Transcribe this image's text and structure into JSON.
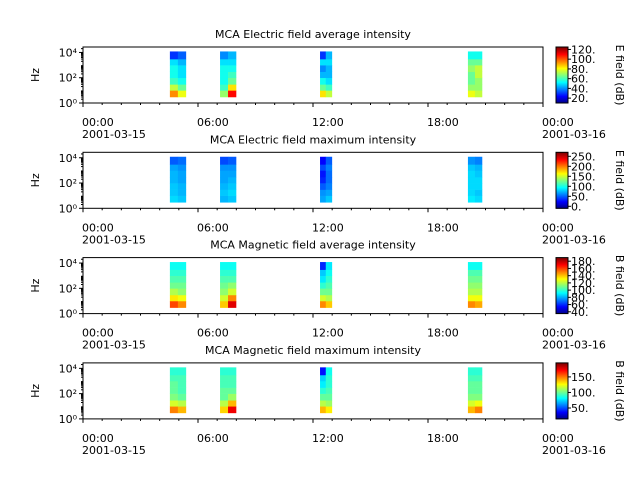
{
  "chart_data": [
    {
      "type": "spectrogram",
      "title": "MCA  Electric field average intensity",
      "ylabel": "Hz",
      "log_y": true,
      "colormap": "jet",
      "xlim": [
        "2001-03-15T00:00",
        "2001-03-16T00:00"
      ],
      "xticks": [
        {
          "value": "2001-03-15T00:00",
          "label": "00:00\n2001-03-15"
        },
        {
          "value": "2001-03-15T06:00",
          "label": "06:00"
        },
        {
          "value": "2001-03-15T12:00",
          "label": "12:00"
        },
        {
          "value": "2001-03-15T18:00",
          "label": "18:00"
        },
        {
          "value": "2001-03-16T00:00",
          "label": "00:00\n2001-03-16"
        }
      ],
      "ylim": [
        1,
        27000
      ],
      "yticks": [
        {
          "value": 1,
          "label": "10⁰"
        },
        {
          "value": 100,
          "label": "10²"
        },
        {
          "value": 10000,
          "label": "10⁴"
        }
      ],
      "x_start": [
        "2001-03-15T04:32",
        "2001-03-15T04:57",
        "2001-03-15T07:09",
        "2001-03-15T07:34",
        "2001-03-15T12:22",
        "2001-03-15T12:40",
        "2001-03-15T20:05",
        "2001-03-15T20:27"
      ],
      "x_end": [
        "2001-03-15T04:57",
        "2001-03-15T05:22",
        "2001-03-15T07:34",
        "2001-03-15T07:59",
        "2001-03-15T12:40",
        "2001-03-15T12:59",
        "2001-03-15T20:27",
        "2001-03-15T20:49"
      ],
      "y_bins": [
        3,
        10,
        30,
        100,
        300,
        1000,
        3000,
        12000
      ],
      "values": [
        [
          95,
          75,
          60,
          55,
          55,
          50,
          30
        ],
        [
          80,
          65,
          55,
          50,
          50,
          45,
          35
        ],
        [
          70,
          60,
          55,
          55,
          55,
          50,
          40
        ],
        [
          110,
          85,
          65,
          60,
          55,
          50,
          45
        ],
        [
          85,
          65,
          55,
          45,
          40,
          50,
          30
        ],
        [
          75,
          60,
          50,
          45,
          45,
          50,
          45
        ],
        [
          80,
          70,
          65,
          65,
          70,
          65,
          55
        ],
        [
          75,
          70,
          70,
          75,
          75,
          65,
          55
        ]
      ],
      "colorbar": {
        "label": "E field (dB)",
        "lim": [
          10,
          125
        ],
        "ticks": [
          {
            "value": 20,
            "label": "20."
          },
          {
            "value": 40,
            "label": "40."
          },
          {
            "value": 60,
            "label": "60."
          },
          {
            "value": 80,
            "label": "80."
          },
          {
            "value": 100,
            "label": "100."
          },
          {
            "value": 120,
            "label": "120."
          }
        ]
      }
    },
    {
      "type": "spectrogram",
      "title": "MCA  Electric field maximum intensity",
      "ylabel": "Hz",
      "log_y": true,
      "colormap": "jet",
      "xlim": [
        "2001-03-15T00:00",
        "2001-03-16T00:00"
      ],
      "xticks": [
        {
          "value": "2001-03-15T00:00",
          "label": "00:00\n2001-03-15"
        },
        {
          "value": "2001-03-15T06:00",
          "label": "06:00"
        },
        {
          "value": "2001-03-15T12:00",
          "label": "12:00"
        },
        {
          "value": "2001-03-15T18:00",
          "label": "18:00"
        },
        {
          "value": "2001-03-16T00:00",
          "label": "00:00\n2001-03-16"
        }
      ],
      "ylim": [
        1,
        27000
      ],
      "yticks": [
        {
          "value": 1,
          "label": "10⁰"
        },
        {
          "value": 100,
          "label": "10²"
        },
        {
          "value": 10000,
          "label": "10⁴"
        }
      ],
      "x_start": [
        "2001-03-15T04:32",
        "2001-03-15T04:57",
        "2001-03-15T07:09",
        "2001-03-15T07:34",
        "2001-03-15T12:22",
        "2001-03-15T12:40",
        "2001-03-15T20:05",
        "2001-03-15T20:27"
      ],
      "x_end": [
        "2001-03-15T04:57",
        "2001-03-15T05:22",
        "2001-03-15T07:34",
        "2001-03-15T07:59",
        "2001-03-15T12:40",
        "2001-03-15T12:59",
        "2001-03-15T20:27",
        "2001-03-15T20:49"
      ],
      "y_bins": [
        3,
        10,
        30,
        100,
        300,
        1000,
        3000,
        12000
      ],
      "values": [
        [
          85,
          80,
          80,
          75,
          75,
          70,
          50
        ],
        [
          80,
          75,
          75,
          70,
          70,
          65,
          55
        ],
        [
          75,
          80,
          75,
          70,
          70,
          65,
          45
        ],
        [
          80,
          85,
          80,
          75,
          70,
          65,
          50
        ],
        [
          70,
          65,
          50,
          35,
          30,
          45,
          25
        ],
        [
          80,
          70,
          60,
          55,
          55,
          60,
          50
        ],
        [
          90,
          85,
          85,
          85,
          85,
          80,
          65
        ],
        [
          85,
          80,
          85,
          85,
          80,
          75,
          60
        ]
      ],
      "colorbar": {
        "label": "E field (dB)",
        "lim": [
          -10,
          270
        ],
        "ticks": [
          {
            "value": 0,
            "label": "0."
          },
          {
            "value": 50,
            "label": "50."
          },
          {
            "value": 100,
            "label": "100."
          },
          {
            "value": 150,
            "label": "150."
          },
          {
            "value": 200,
            "label": "200."
          },
          {
            "value": 250,
            "label": "250."
          }
        ]
      }
    },
    {
      "type": "spectrogram",
      "title": "MCA  Magnetic field average intensity",
      "ylabel": "Hz",
      "log_y": true,
      "colormap": "jet",
      "xlim": [
        "2001-03-15T00:00",
        "2001-03-16T00:00"
      ],
      "xticks": [
        {
          "value": "2001-03-15T00:00",
          "label": "00:00\n2001-03-15"
        },
        {
          "value": "2001-03-15T06:00",
          "label": "06:00"
        },
        {
          "value": "2001-03-15T12:00",
          "label": "12:00"
        },
        {
          "value": "2001-03-15T18:00",
          "label": "18:00"
        },
        {
          "value": "2001-03-16T00:00",
          "label": "00:00\n2001-03-16"
        }
      ],
      "ylim": [
        1,
        27000
      ],
      "yticks": [
        {
          "value": 1,
          "label": "10⁰"
        },
        {
          "value": 100,
          "label": "10²"
        },
        {
          "value": 10000,
          "label": "10⁴"
        }
      ],
      "x_start": [
        "2001-03-15T04:32",
        "2001-03-15T04:57",
        "2001-03-15T07:09",
        "2001-03-15T07:34",
        "2001-03-15T12:22",
        "2001-03-15T12:40",
        "2001-03-15T20:05",
        "2001-03-15T20:27"
      ],
      "x_end": [
        "2001-03-15T04:57",
        "2001-03-15T05:22",
        "2001-03-15T07:34",
        "2001-03-15T07:59",
        "2001-03-15T12:40",
        "2001-03-15T12:59",
        "2001-03-15T20:27",
        "2001-03-15T20:49"
      ],
      "y_bins": [
        3,
        10,
        30,
        100,
        300,
        1000,
        3000,
        12000
      ],
      "values": [
        [
          160,
          135,
          120,
          110,
          105,
          100,
          95
        ],
        [
          150,
          130,
          115,
          110,
          105,
          100,
          95
        ],
        [
          140,
          125,
          115,
          110,
          105,
          100,
          95
        ],
        [
          175,
          150,
          125,
          115,
          105,
          100,
          95
        ],
        [
          150,
          125,
          110,
          100,
          90,
          85,
          60
        ],
        [
          140,
          120,
          110,
          105,
          100,
          95,
          90
        ],
        [
          150,
          130,
          120,
          115,
          110,
          105,
          95
        ],
        [
          145,
          130,
          120,
          115,
          110,
          105,
          95
        ]
      ],
      "colorbar": {
        "label": "B field (dB)",
        "lim": [
          35,
          190
        ],
        "ticks": [
          {
            "value": 40,
            "label": "40."
          },
          {
            "value": 60,
            "label": "60."
          },
          {
            "value": 80,
            "label": "80."
          },
          {
            "value": 100,
            "label": "100."
          },
          {
            "value": 120,
            "label": "120."
          },
          {
            "value": 140,
            "label": "140."
          },
          {
            "value": 160,
            "label": "160."
          },
          {
            "value": 180,
            "label": "180."
          }
        ]
      }
    },
    {
      "type": "spectrogram",
      "title": "MCA  Magnetic field maximum intensity",
      "ylabel": "Hz",
      "log_y": true,
      "colormap": "jet",
      "xlim": [
        "2001-03-15T00:00",
        "2001-03-16T00:00"
      ],
      "xticks": [
        {
          "value": "2001-03-15T00:00",
          "label": "00:00\n2001-03-15"
        },
        {
          "value": "2001-03-15T06:00",
          "label": "06:00"
        },
        {
          "value": "2001-03-15T12:00",
          "label": "12:00"
        },
        {
          "value": "2001-03-15T18:00",
          "label": "18:00"
        },
        {
          "value": "2001-03-16T00:00",
          "label": "00:00\n2001-03-16"
        }
      ],
      "ylim": [
        1,
        27000
      ],
      "yticks": [
        {
          "value": 1,
          "label": "10⁰"
        },
        {
          "value": 100,
          "label": "10²"
        },
        {
          "value": 10000,
          "label": "10⁴"
        }
      ],
      "x_start": [
        "2001-03-15T04:32",
        "2001-03-15T04:57",
        "2001-03-15T07:09",
        "2001-03-15T07:34",
        "2001-03-15T12:22",
        "2001-03-15T12:40",
        "2001-03-15T20:05",
        "2001-03-15T20:27"
      ],
      "x_end": [
        "2001-03-15T04:57",
        "2001-03-15T05:22",
        "2001-03-15T07:34",
        "2001-03-15T07:59",
        "2001-03-15T12:40",
        "2001-03-15T12:59",
        "2001-03-15T20:27",
        "2001-03-15T20:49"
      ],
      "y_bins": [
        3,
        10,
        30,
        100,
        300,
        1000,
        3000,
        12000
      ],
      "values": [
        [
          150,
          120,
          105,
          100,
          100,
          95,
          90
        ],
        [
          140,
          115,
          100,
          95,
          95,
          95,
          90
        ],
        [
          135,
          115,
          100,
          100,
          95,
          95,
          90
        ],
        [
          175,
          140,
          110,
          100,
          95,
          95,
          90
        ],
        [
          140,
          115,
          100,
          90,
          80,
          75,
          40
        ],
        [
          130,
          110,
          100,
          95,
          90,
          90,
          85
        ],
        [
          140,
          120,
          105,
          100,
          100,
          95,
          90
        ],
        [
          150,
          125,
          105,
          100,
          100,
          95,
          90
        ]
      ],
      "colorbar": {
        "label": "B field (dB)",
        "lim": [
          15,
          195
        ],
        "ticks": [
          {
            "value": 50,
            "label": "50."
          },
          {
            "value": 100,
            "label": "100."
          },
          {
            "value": 150,
            "label": "150."
          }
        ]
      }
    }
  ]
}
